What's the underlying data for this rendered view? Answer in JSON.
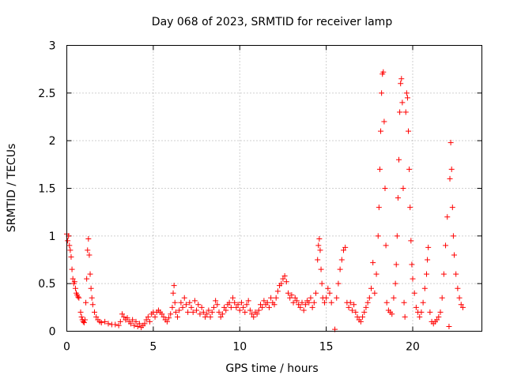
{
  "chart_data": {
    "type": "scatter",
    "title": "Day 068 of 2023, SRMTID for receiver lamp",
    "xlabel": "GPS time / hours",
    "ylabel": "SRMTID / TECUs",
    "xlim": [
      0,
      24
    ],
    "ylim": [
      0,
      3
    ],
    "x_ticks": [
      "0",
      "5",
      "10",
      "15",
      "20"
    ],
    "x_tick_values": [
      0,
      5,
      10,
      15,
      20
    ],
    "y_ticks": [
      "0",
      "0.5",
      "1",
      "1.5",
      "2",
      "2.5",
      "3"
    ],
    "y_tick_values": [
      0,
      0.5,
      1,
      1.5,
      2,
      2.5,
      3
    ],
    "grid": true,
    "marker": "+",
    "series_color": "#ff0000",
    "series": [
      {
        "name": "SRMTID",
        "points": [
          [
            0.0,
            1.02
          ],
          [
            0.05,
            0.95
          ],
          [
            0.1,
            1.0
          ],
          [
            0.15,
            0.9
          ],
          [
            0.2,
            0.85
          ],
          [
            0.25,
            0.78
          ],
          [
            0.3,
            0.65
          ],
          [
            0.35,
            0.55
          ],
          [
            0.4,
            0.5
          ],
          [
            0.45,
            0.52
          ],
          [
            0.5,
            0.45
          ],
          [
            0.55,
            0.4
          ],
          [
            0.6,
            0.38
          ],
          [
            0.65,
            0.36
          ],
          [
            0.7,
            0.35
          ],
          [
            0.8,
            0.2
          ],
          [
            0.85,
            0.15
          ],
          [
            0.9,
            0.12
          ],
          [
            0.95,
            0.1
          ],
          [
            1.0,
            0.09
          ],
          [
            1.05,
            0.12
          ],
          [
            1.1,
            0.3
          ],
          [
            1.15,
            0.55
          ],
          [
            1.2,
            0.85
          ],
          [
            1.25,
            0.97
          ],
          [
            1.3,
            0.8
          ],
          [
            1.35,
            0.6
          ],
          [
            1.4,
            0.45
          ],
          [
            1.45,
            0.35
          ],
          [
            1.5,
            0.28
          ],
          [
            1.6,
            0.2
          ],
          [
            1.7,
            0.15
          ],
          [
            1.8,
            0.12
          ],
          [
            1.9,
            0.1
          ],
          [
            2.0,
            0.09
          ],
          [
            2.2,
            0.1
          ],
          [
            2.4,
            0.08
          ],
          [
            2.6,
            0.07
          ],
          [
            2.8,
            0.07
          ],
          [
            3.0,
            0.06
          ],
          [
            3.1,
            0.1
          ],
          [
            3.2,
            0.18
          ],
          [
            3.3,
            0.15
          ],
          [
            3.4,
            0.12
          ],
          [
            3.5,
            0.14
          ],
          [
            3.6,
            0.1
          ],
          [
            3.7,
            0.08
          ],
          [
            3.8,
            0.12
          ],
          [
            3.9,
            0.06
          ],
          [
            4.0,
            0.1
          ],
          [
            4.1,
            0.05
          ],
          [
            4.2,
            0.08
          ],
          [
            4.3,
            0.04
          ],
          [
            4.4,
            0.06
          ],
          [
            4.5,
            0.08
          ],
          [
            4.6,
            0.12
          ],
          [
            4.7,
            0.15
          ],
          [
            4.8,
            0.1
          ],
          [
            4.9,
            0.18
          ],
          [
            5.0,
            0.2
          ],
          [
            5.1,
            0.15
          ],
          [
            5.2,
            0.2
          ],
          [
            5.3,
            0.22
          ],
          [
            5.4,
            0.2
          ],
          [
            5.5,
            0.18
          ],
          [
            5.6,
            0.15
          ],
          [
            5.7,
            0.12
          ],
          [
            5.8,
            0.1
          ],
          [
            5.9,
            0.14
          ],
          [
            6.0,
            0.18
          ],
          [
            6.1,
            0.25
          ],
          [
            6.15,
            0.4
          ],
          [
            6.2,
            0.48
          ],
          [
            6.25,
            0.3
          ],
          [
            6.3,
            0.2
          ],
          [
            6.4,
            0.15
          ],
          [
            6.5,
            0.22
          ],
          [
            6.6,
            0.3
          ],
          [
            6.7,
            0.25
          ],
          [
            6.8,
            0.35
          ],
          [
            6.9,
            0.28
          ],
          [
            7.0,
            0.2
          ],
          [
            7.1,
            0.3
          ],
          [
            7.2,
            0.25
          ],
          [
            7.3,
            0.2
          ],
          [
            7.4,
            0.32
          ],
          [
            7.5,
            0.22
          ],
          [
            7.6,
            0.28
          ],
          [
            7.7,
            0.18
          ],
          [
            7.8,
            0.25
          ],
          [
            7.9,
            0.2
          ],
          [
            8.0,
            0.15
          ],
          [
            8.1,
            0.18
          ],
          [
            8.2,
            0.22
          ],
          [
            8.3,
            0.15
          ],
          [
            8.4,
            0.2
          ],
          [
            8.5,
            0.25
          ],
          [
            8.6,
            0.32
          ],
          [
            8.7,
            0.28
          ],
          [
            8.8,
            0.2
          ],
          [
            8.9,
            0.15
          ],
          [
            9.0,
            0.18
          ],
          [
            9.1,
            0.25
          ],
          [
            9.2,
            0.22
          ],
          [
            9.3,
            0.28
          ],
          [
            9.4,
            0.3
          ],
          [
            9.5,
            0.25
          ],
          [
            9.6,
            0.35
          ],
          [
            9.7,
            0.3
          ],
          [
            9.8,
            0.25
          ],
          [
            9.9,
            0.28
          ],
          [
            10.0,
            0.22
          ],
          [
            10.1,
            0.3
          ],
          [
            10.2,
            0.25
          ],
          [
            10.3,
            0.2
          ],
          [
            10.4,
            0.28
          ],
          [
            10.5,
            0.32
          ],
          [
            10.6,
            0.22
          ],
          [
            10.7,
            0.18
          ],
          [
            10.8,
            0.15
          ],
          [
            10.9,
            0.2
          ],
          [
            11.0,
            0.18
          ],
          [
            11.1,
            0.22
          ],
          [
            11.2,
            0.28
          ],
          [
            11.3,
            0.25
          ],
          [
            11.4,
            0.32
          ],
          [
            11.5,
            0.28
          ],
          [
            11.6,
            0.3
          ],
          [
            11.7,
            0.25
          ],
          [
            11.8,
            0.35
          ],
          [
            11.9,
            0.3
          ],
          [
            12.0,
            0.28
          ],
          [
            12.1,
            0.35
          ],
          [
            12.2,
            0.42
          ],
          [
            12.3,
            0.48
          ],
          [
            12.4,
            0.5
          ],
          [
            12.5,
            0.55
          ],
          [
            12.6,
            0.58
          ],
          [
            12.7,
            0.52
          ],
          [
            12.8,
            0.4
          ],
          [
            12.9,
            0.35
          ],
          [
            13.0,
            0.38
          ],
          [
            13.1,
            0.3
          ],
          [
            13.2,
            0.35
          ],
          [
            13.3,
            0.32
          ],
          [
            13.4,
            0.28
          ],
          [
            13.5,
            0.25
          ],
          [
            13.6,
            0.3
          ],
          [
            13.7,
            0.22
          ],
          [
            13.8,
            0.28
          ],
          [
            13.9,
            0.32
          ],
          [
            14.0,
            0.3
          ],
          [
            14.1,
            0.35
          ],
          [
            14.2,
            0.25
          ],
          [
            14.3,
            0.3
          ],
          [
            14.4,
            0.4
          ],
          [
            14.5,
            0.75
          ],
          [
            14.55,
            0.9
          ],
          [
            14.6,
            0.97
          ],
          [
            14.65,
            0.85
          ],
          [
            14.7,
            0.65
          ],
          [
            14.75,
            0.5
          ],
          [
            14.8,
            0.35
          ],
          [
            14.9,
            0.3
          ],
          [
            15.0,
            0.35
          ],
          [
            15.1,
            0.45
          ],
          [
            15.2,
            0.4
          ],
          [
            15.3,
            0.3
          ],
          [
            15.5,
            0.02
          ],
          [
            15.6,
            0.35
          ],
          [
            15.7,
            0.5
          ],
          [
            15.8,
            0.65
          ],
          [
            15.9,
            0.75
          ],
          [
            16.0,
            0.85
          ],
          [
            16.1,
            0.88
          ],
          [
            16.2,
            0.3
          ],
          [
            16.3,
            0.25
          ],
          [
            16.4,
            0.3
          ],
          [
            16.5,
            0.22
          ],
          [
            16.6,
            0.28
          ],
          [
            16.7,
            0.2
          ],
          [
            16.8,
            0.15
          ],
          [
            16.9,
            0.12
          ],
          [
            17.0,
            0.1
          ],
          [
            17.1,
            0.15
          ],
          [
            17.2,
            0.2
          ],
          [
            17.3,
            0.25
          ],
          [
            17.4,
            0.3
          ],
          [
            17.5,
            0.35
          ],
          [
            17.6,
            0.45
          ],
          [
            17.7,
            0.72
          ],
          [
            17.8,
            0.4
          ],
          [
            17.9,
            0.6
          ],
          [
            18.0,
            1.0
          ],
          [
            18.05,
            1.3
          ],
          [
            18.1,
            1.7
          ],
          [
            18.15,
            2.1
          ],
          [
            18.2,
            2.5
          ],
          [
            18.25,
            2.7
          ],
          [
            18.3,
            2.72
          ],
          [
            18.35,
            2.2
          ],
          [
            18.4,
            1.5
          ],
          [
            18.45,
            0.9
          ],
          [
            18.5,
            0.3
          ],
          [
            18.6,
            0.22
          ],
          [
            18.7,
            0.2
          ],
          [
            18.8,
            0.18
          ],
          [
            18.9,
            0.35
          ],
          [
            19.0,
            0.5
          ],
          [
            19.05,
            0.7
          ],
          [
            19.1,
            1.0
          ],
          [
            19.15,
            1.4
          ],
          [
            19.2,
            1.8
          ],
          [
            19.25,
            2.3
          ],
          [
            19.3,
            2.6
          ],
          [
            19.35,
            2.65
          ],
          [
            19.4,
            2.4
          ],
          [
            19.45,
            1.5
          ],
          [
            19.5,
            0.3
          ],
          [
            19.55,
            0.15
          ],
          [
            19.6,
            2.3
          ],
          [
            19.65,
            2.5
          ],
          [
            19.7,
            2.45
          ],
          [
            19.75,
            2.1
          ],
          [
            19.8,
            1.7
          ],
          [
            19.85,
            1.3
          ],
          [
            19.9,
            0.95
          ],
          [
            19.95,
            0.7
          ],
          [
            20.0,
            0.55
          ],
          [
            20.1,
            0.4
          ],
          [
            20.2,
            0.25
          ],
          [
            20.3,
            0.2
          ],
          [
            20.4,
            0.15
          ],
          [
            20.5,
            0.2
          ],
          [
            20.6,
            0.3
          ],
          [
            20.7,
            0.45
          ],
          [
            20.8,
            0.6
          ],
          [
            20.85,
            0.75
          ],
          [
            20.9,
            0.88
          ],
          [
            21.0,
            0.2
          ],
          [
            21.1,
            0.1
          ],
          [
            21.2,
            0.08
          ],
          [
            21.3,
            0.1
          ],
          [
            21.4,
            0.12
          ],
          [
            21.5,
            0.15
          ],
          [
            21.6,
            0.2
          ],
          [
            21.7,
            0.35
          ],
          [
            21.8,
            0.6
          ],
          [
            21.9,
            0.9
          ],
          [
            22.0,
            1.2
          ],
          [
            22.1,
            0.05
          ],
          [
            22.15,
            1.6
          ],
          [
            22.2,
            1.98
          ],
          [
            22.25,
            1.7
          ],
          [
            22.3,
            1.3
          ],
          [
            22.35,
            1.0
          ],
          [
            22.4,
            0.8
          ],
          [
            22.5,
            0.6
          ],
          [
            22.6,
            0.45
          ],
          [
            22.7,
            0.35
          ],
          [
            22.8,
            0.28
          ],
          [
            22.9,
            0.25
          ]
        ]
      }
    ]
  }
}
